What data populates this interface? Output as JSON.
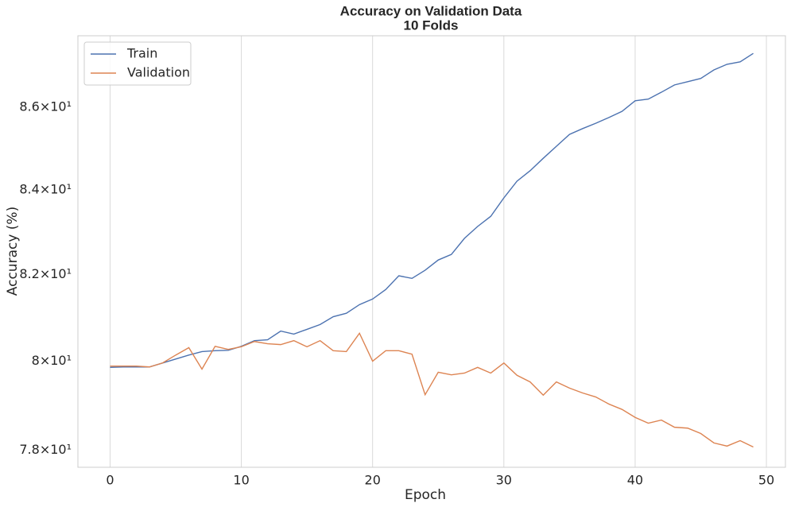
{
  "chart_data": {
    "type": "line",
    "title": "Accuracy on Validation Data",
    "subtitle": "10 Folds",
    "x_label": "Epoch",
    "y_label": "Accuracy (%)",
    "x": [
      0,
      1,
      2,
      3,
      4,
      5,
      6,
      7,
      8,
      9,
      10,
      11,
      12,
      13,
      14,
      15,
      16,
      17,
      18,
      19,
      20,
      21,
      22,
      23,
      24,
      25,
      26,
      27,
      28,
      29,
      30,
      31,
      32,
      33,
      34,
      35,
      36,
      37,
      38,
      39,
      40,
      41,
      42,
      43,
      44,
      45,
      46,
      47,
      48,
      49
    ],
    "series": [
      {
        "name": "Train",
        "color": "#4c72b0",
        "values": [
          79.86,
          79.87,
          79.87,
          79.87,
          79.96,
          80.05,
          80.14,
          80.22,
          80.24,
          80.25,
          80.34,
          80.47,
          80.49,
          80.69,
          80.62,
          80.73,
          80.84,
          81.02,
          81.1,
          81.3,
          81.43,
          81.65,
          81.97,
          81.91,
          82.1,
          82.34,
          82.47,
          82.85,
          83.13,
          83.37,
          83.81,
          84.21,
          84.46,
          84.76,
          85.05,
          85.34,
          85.48,
          85.61,
          85.75,
          85.9,
          86.16,
          86.2,
          86.37,
          86.55,
          86.63,
          86.71,
          86.92,
          87.06,
          87.12,
          87.33
        ]
      },
      {
        "name": "Validation",
        "color": "#dd8452",
        "values": [
          79.89,
          79.89,
          79.89,
          79.87,
          79.96,
          80.14,
          80.31,
          79.82,
          80.34,
          80.27,
          80.33,
          80.45,
          80.4,
          80.38,
          80.47,
          80.33,
          80.47,
          80.24,
          80.22,
          80.64,
          80.0,
          80.24,
          80.24,
          80.16,
          79.24,
          79.75,
          79.69,
          79.73,
          79.86,
          79.73,
          79.96,
          79.68,
          79.53,
          79.23,
          79.53,
          79.39,
          79.28,
          79.19,
          79.03,
          78.91,
          78.73,
          78.6,
          78.67,
          78.51,
          78.49,
          78.37,
          78.16,
          78.09,
          78.21,
          78.07
        ]
      }
    ],
    "xlim": [
      -2.45,
      51.45
    ],
    "xticks": [
      0,
      10,
      20,
      30,
      40,
      50
    ],
    "ylim": [
      77.62,
      87.77
    ],
    "yscale": "log",
    "yticks": [
      {
        "value": 78,
        "label": "7.8×10¹"
      },
      {
        "value": 80,
        "label": "8×10¹"
      },
      {
        "value": 82,
        "label": "8.2×10¹"
      },
      {
        "value": 84,
        "label": "8.4×10¹"
      },
      {
        "value": 86,
        "label": "8.6×10¹"
      }
    ],
    "grid": "x",
    "legend": "upper left"
  }
}
